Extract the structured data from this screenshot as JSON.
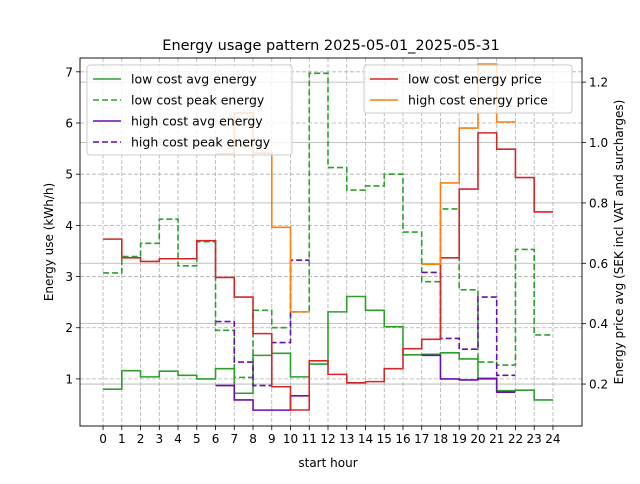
{
  "chart_data": {
    "type": "line",
    "step": "post",
    "title": "Energy usage pattern 2025-05-01_2025-05-31",
    "xlabel": "start hour",
    "ylabel": "Energy use (kWh/h)",
    "y2label": "Energy price avg (SEK incl VAT and surcharges)",
    "xlim": [
      -1.23,
      25.55
    ],
    "ylim": [
      0.08,
      7.27
    ],
    "y2lim": [
      0.061,
      1.28
    ],
    "xticks": [
      0,
      1,
      2,
      3,
      4,
      5,
      6,
      7,
      8,
      9,
      10,
      11,
      12,
      13,
      14,
      15,
      16,
      17,
      18,
      19,
      20,
      21,
      22,
      23,
      24
    ],
    "yticks": [
      1,
      2,
      3,
      4,
      5,
      6,
      7
    ],
    "y2ticks": [
      "0.2",
      "0.4",
      "0.6",
      "0.8",
      "1.0",
      "1.2"
    ],
    "grid": true,
    "series": [
      {
        "name": "low cost avg energy",
        "axis": "left",
        "color": "#2ca02c",
        "dash": false,
        "start": 0,
        "values": [
          0.8,
          1.16,
          1.04,
          1.15,
          1.07,
          1.0,
          1.2,
          0.72,
          1.46,
          1.5,
          1.04,
          1.29,
          2.31,
          2.61,
          2.34,
          2.02,
          1.47,
          1.48,
          1.51,
          1.39,
          1.0,
          0.77,
          0.78,
          0.59
        ]
      },
      {
        "name": "low cost peak energy",
        "axis": "left",
        "color": "#2ca02c",
        "dash": true,
        "start": 0,
        "values": [
          3.07,
          3.39,
          3.65,
          4.12,
          3.21,
          3.68,
          1.95,
          1.03,
          2.34,
          2.0,
          2.31,
          6.97,
          5.13,
          4.69,
          4.77,
          5.0,
          3.87,
          2.9,
          4.32,
          2.74,
          1.33,
          1.27,
          3.53,
          1.86
        ]
      },
      {
        "name": "high cost avg energy",
        "axis": "left",
        "color": "#6a0dad",
        "dash": false,
        "segments": [
          {
            "start": 6,
            "values": [
              0.87,
              0.59,
              0.39,
              0.39,
              0.67
            ]
          },
          {
            "start": 17,
            "values": [
              1.46,
              1.0,
              0.98,
              1.01,
              0.74
            ]
          }
        ]
      },
      {
        "name": "high cost peak energy",
        "axis": "left",
        "color": "#6a0dad",
        "dash": true,
        "segments": [
          {
            "start": 6,
            "values": [
              2.12,
              1.33,
              0.87,
              1.71,
              3.32
            ]
          },
          {
            "start": 17,
            "values": [
              3.08,
              1.79,
              1.58,
              2.6,
              1.07
            ]
          }
        ]
      },
      {
        "name": "low cost energy price",
        "axis": "right",
        "color": "#d62728",
        "dash": false,
        "start": 0,
        "values": [
          0.68,
          0.618,
          0.606,
          0.615,
          0.615,
          0.675,
          0.553,
          0.488,
          0.367,
          0.191,
          0.114,
          0.277,
          0.232,
          0.204,
          0.208,
          0.251,
          0.317,
          0.348,
          0.618,
          0.846,
          1.032,
          0.978,
          0.884,
          0.77
        ]
      },
      {
        "name": "high cost energy price",
        "axis": "right",
        "color": "#ff7f0e",
        "dash": false,
        "segments": [
          {
            "start": 6,
            "values": [
              0.963,
              1.098,
              0.965,
              0.719,
              0.439
            ]
          },
          {
            "start": 17,
            "values": [
              0.597,
              0.866,
              1.048,
              1.26,
              1.068
            ]
          }
        ]
      }
    ],
    "legends": [
      {
        "placement": "upper-left",
        "entries": [
          0,
          1,
          2,
          3
        ]
      },
      {
        "placement": "upper-right",
        "entries": [
          4,
          5
        ]
      }
    ]
  }
}
